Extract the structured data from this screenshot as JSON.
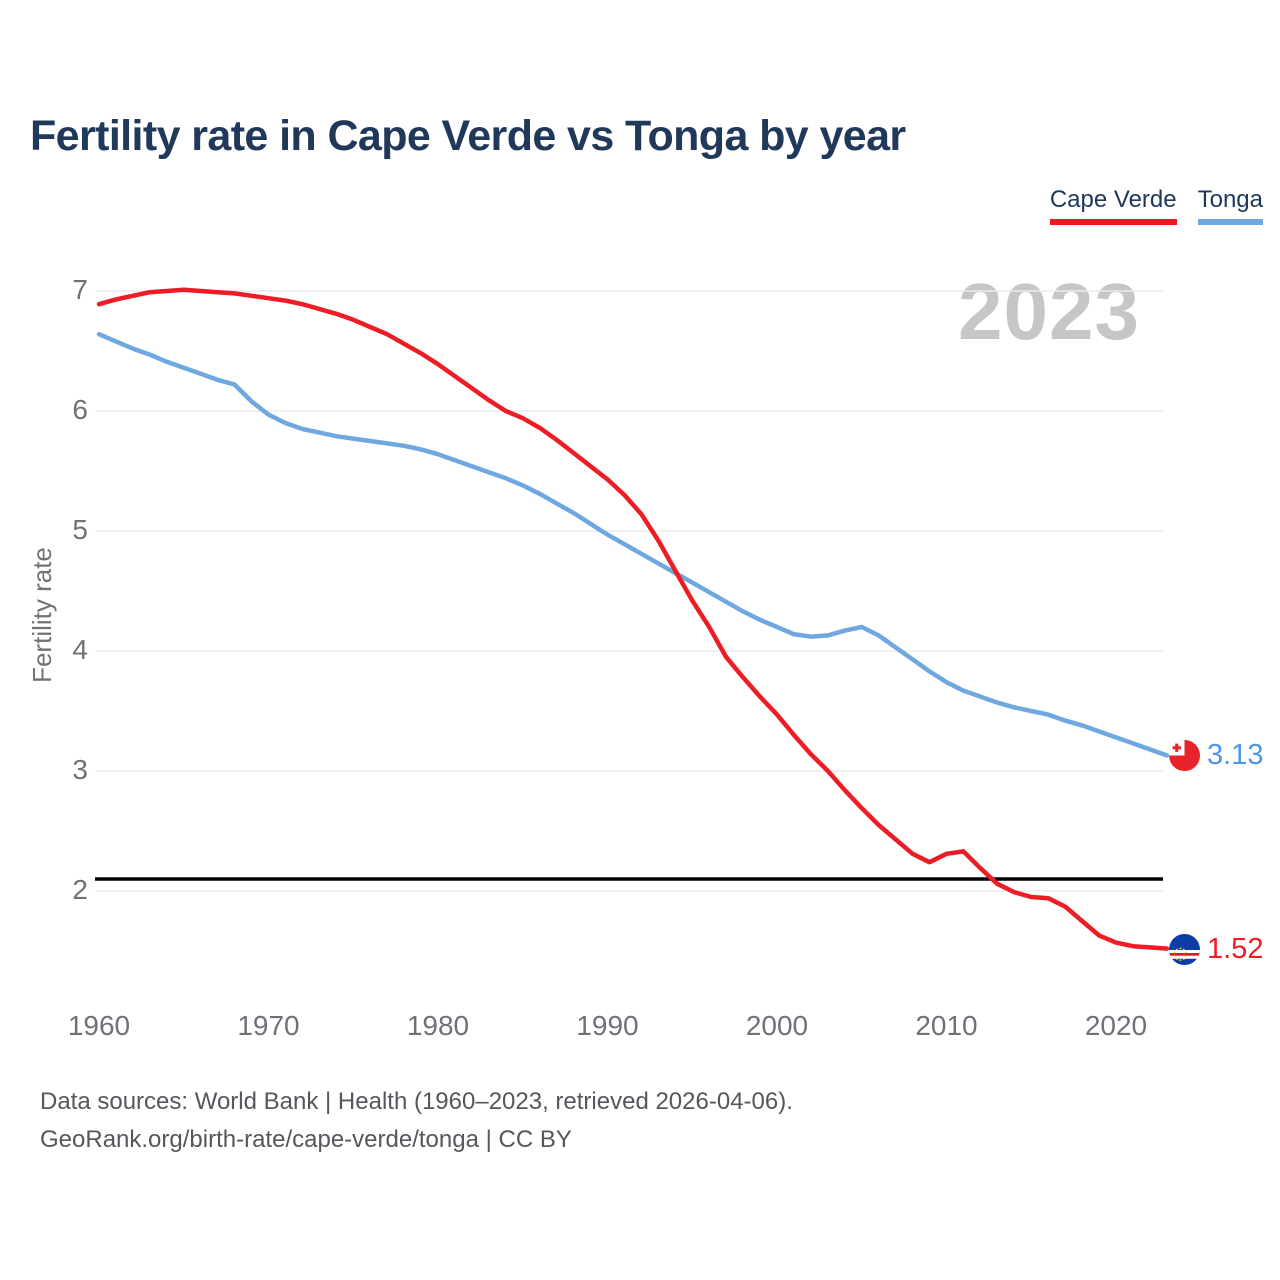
{
  "header": {
    "title": "Fertility rate in Cape Verde vs Tonga by year",
    "year_watermark": "2023"
  },
  "legend": {
    "position": "top-right",
    "items": [
      {
        "label": "Cape Verde",
        "color": "#ee161f"
      },
      {
        "label": "Tonga",
        "color": "#6fa8e0"
      }
    ]
  },
  "footer": {
    "line1": "Data sources: World Bank | Health (1960–2023, retrieved 2026-04-06).",
    "line2": "GeoRank.org/birth-rate/cape-verde/tonga | CC BY"
  },
  "chart_data": {
    "type": "line",
    "title": "Fertility rate in Cape Verde vs Tonga by year",
    "xlabel": "",
    "ylabel": "Fertility rate",
    "xlim": [
      1960,
      2023
    ],
    "ylim": [
      2,
      7
    ],
    "yticks": [
      7,
      6,
      5,
      4,
      3,
      2
    ],
    "xticks": [
      1960,
      1970,
      1980,
      1990,
      2000,
      2010,
      2020
    ],
    "grid": true,
    "gridline_color": "#ececec",
    "legend_position": "top-right",
    "reference_line": {
      "value": 2.1,
      "color": "#000000"
    },
    "x": [
      1960,
      1961,
      1962,
      1963,
      1964,
      1965,
      1966,
      1967,
      1968,
      1969,
      1970,
      1971,
      1972,
      1973,
      1974,
      1975,
      1976,
      1977,
      1978,
      1979,
      1980,
      1981,
      1982,
      1983,
      1984,
      1985,
      1986,
      1987,
      1988,
      1989,
      1990,
      1991,
      1992,
      1993,
      1994,
      1995,
      1996,
      1997,
      1998,
      1999,
      2000,
      2001,
      2002,
      2003,
      2004,
      2005,
      2006,
      2007,
      2008,
      2009,
      2010,
      2011,
      2012,
      2013,
      2014,
      2015,
      2016,
      2017,
      2018,
      2019,
      2020,
      2021,
      2022,
      2023
    ],
    "series": [
      {
        "name": "Cape Verde",
        "color": "#ee1c24",
        "end_label": "1.52",
        "end_value": 1.52,
        "values": [
          6.89,
          6.93,
          6.96,
          6.99,
          7.0,
          7.01,
          7.0,
          6.99,
          6.98,
          6.96,
          6.94,
          6.92,
          6.89,
          6.85,
          6.81,
          6.76,
          6.7,
          6.64,
          6.56,
          6.48,
          6.39,
          6.29,
          6.19,
          6.09,
          6.0,
          5.94,
          5.86,
          5.76,
          5.65,
          5.54,
          5.43,
          5.3,
          5.14,
          4.92,
          4.67,
          4.42,
          4.2,
          3.95,
          3.78,
          3.62,
          3.47,
          3.3,
          3.14,
          3.0,
          2.84,
          2.69,
          2.55,
          2.43,
          2.31,
          2.24,
          2.31,
          2.33,
          2.19,
          2.06,
          1.99,
          1.95,
          1.94,
          1.87,
          1.75,
          1.63,
          1.57,
          1.54,
          1.53,
          1.52
        ]
      },
      {
        "name": "Tonga",
        "color": "#6fa8e0",
        "end_label": "3.13",
        "end_value": 3.13,
        "values": [
          6.64,
          6.58,
          6.52,
          6.47,
          6.41,
          6.36,
          6.31,
          6.26,
          6.22,
          6.08,
          5.97,
          5.9,
          5.85,
          5.82,
          5.79,
          5.77,
          5.75,
          5.73,
          5.71,
          5.68,
          5.64,
          5.59,
          5.54,
          5.49,
          5.44,
          5.38,
          5.31,
          5.23,
          5.15,
          5.06,
          4.97,
          4.89,
          4.81,
          4.73,
          4.65,
          4.57,
          4.49,
          4.41,
          4.33,
          4.26,
          4.2,
          4.14,
          4.12,
          4.13,
          4.17,
          4.2,
          4.13,
          4.03,
          3.93,
          3.83,
          3.74,
          3.67,
          3.62,
          3.57,
          3.53,
          3.5,
          3.47,
          3.42,
          3.38,
          3.33,
          3.28,
          3.23,
          3.18,
          3.13
        ]
      }
    ]
  }
}
